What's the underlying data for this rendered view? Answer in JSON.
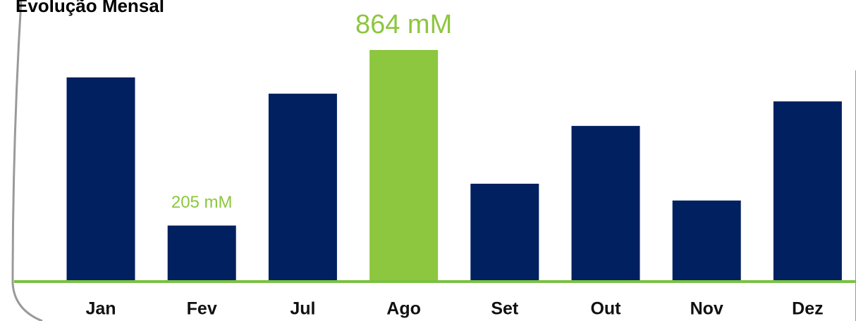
{
  "chart_data": {
    "type": "bar",
    "title": "Evolução Mensal",
    "categories": [
      "Jan",
      "Fev",
      "Jul",
      "Ago",
      "Set",
      "Out",
      "Nov",
      "Dez"
    ],
    "values": [
      761,
      205,
      700,
      864,
      362,
      579,
      299,
      671
    ],
    "value_labels": [
      null,
      "205 mM",
      null,
      "864 mM",
      null,
      null,
      null,
      null
    ],
    "colors": [
      "#002060",
      "#002060",
      "#002060",
      "#8dc63f",
      "#002060",
      "#002060",
      "#002060",
      "#002060"
    ]
  }
}
